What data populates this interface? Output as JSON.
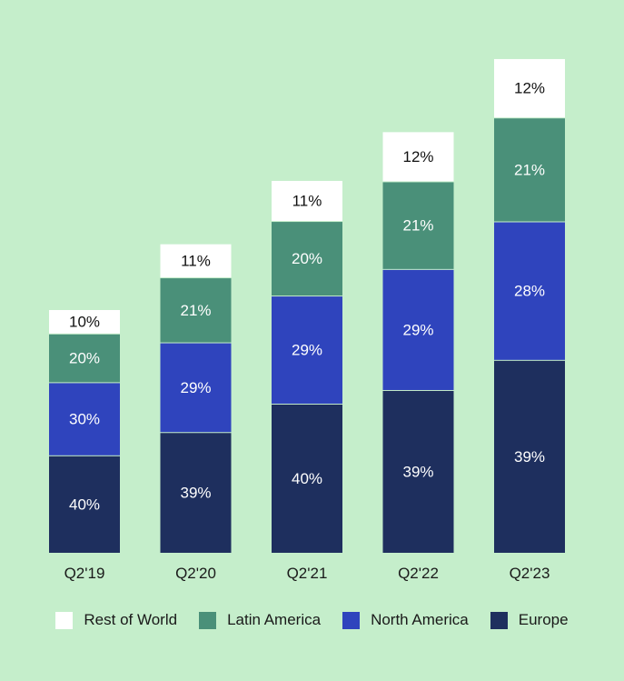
{
  "chart_data": {
    "type": "bar",
    "stacked": true,
    "categories": [
      "Q2'19",
      "Q2'20",
      "Q2'21",
      "Q2'22",
      "Q2'23"
    ],
    "series": [
      {
        "name": "Europe",
        "color": "#1e2f5e",
        "label_color": "#ffffff",
        "values": [
          40,
          39,
          40,
          39,
          39
        ]
      },
      {
        "name": "North America",
        "color": "#2f44bd",
        "label_color": "#ffffff",
        "values": [
          30,
          29,
          29,
          29,
          28
        ]
      },
      {
        "name": "Latin America",
        "color": "#4a9079",
        "label_color": "#ffffff",
        "values": [
          20,
          21,
          20,
          21,
          21
        ]
      },
      {
        "name": "Rest of World",
        "color": "#ffffff",
        "label_color": "#111111",
        "values": [
          10,
          11,
          11,
          12,
          12
        ]
      }
    ],
    "data_labels": [
      [
        "40%",
        "39%",
        "40%",
        "39%",
        "39%"
      ],
      [
        "30%",
        "29%",
        "29%",
        "29%",
        "28%"
      ],
      [
        "20%",
        "21%",
        "20%",
        "21%",
        "21%"
      ],
      [
        "10%",
        "11%",
        "11%",
        "12%",
        "12%"
      ]
    ],
    "legend": [
      "Rest of World",
      "Latin America",
      "North America",
      "Europe"
    ],
    "legend_position": "bottom",
    "grid": false,
    "title": "",
    "xlabel": "",
    "ylabel": ""
  }
}
